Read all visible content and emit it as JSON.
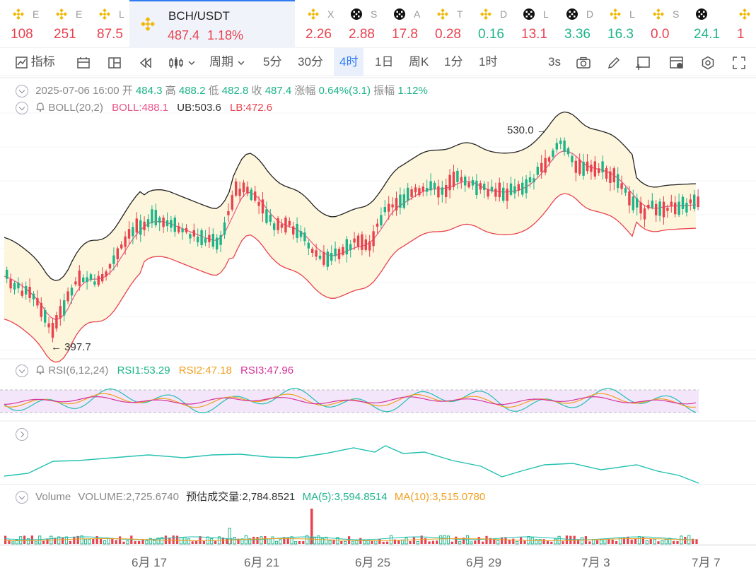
{
  "tickers": [
    {
      "name": "E",
      "price": "108",
      "dir": "dn",
      "icon": "binance-coin-icon"
    },
    {
      "name": "E",
      "price": "251",
      "dir": "dn",
      "icon": "binance-coin-icon"
    },
    {
      "name": "L",
      "price": "87.5",
      "dir": "dn",
      "icon": "binance-coin-icon"
    },
    {
      "name": "BCH/USDT",
      "price": "487.4",
      "change": "1.18%",
      "dir": "dn",
      "icon": "binance-coin-icon",
      "active": true
    },
    {
      "name": "X",
      "price": "2.26",
      "dir": "dn",
      "icon": "binance-coin-icon"
    },
    {
      "name": "S",
      "price": "2.88",
      "dir": "dn",
      "icon": "okx-icon"
    },
    {
      "name": "A",
      "price": "17.8",
      "dir": "dn",
      "icon": "okx-icon"
    },
    {
      "name": "T",
      "price": "0.28",
      "dir": "dn",
      "icon": "binance-coin-icon"
    },
    {
      "name": "D",
      "price": "0.16",
      "dir": "up",
      "icon": "binance-coin-icon"
    },
    {
      "name": "L",
      "price": "13.1",
      "dir": "dn",
      "icon": "okx-icon"
    },
    {
      "name": "D",
      "price": "3.36",
      "dir": "up",
      "icon": "okx-icon"
    },
    {
      "name": "L",
      "price": "16.3",
      "dir": "up",
      "icon": "binance-coin-icon"
    },
    {
      "name": "S",
      "price": "0.0",
      "dir": "dn",
      "icon": "binance-coin-icon"
    },
    {
      "name": "",
      "price": "24.1",
      "dir": "up",
      "icon": "okx-icon"
    },
    {
      "name": "",
      "price": "1",
      "dir": "dn",
      "icon": "binance-coin-icon"
    }
  ],
  "toolbar": {
    "indicator_label": "指标",
    "period_label": "周期",
    "intervals": [
      "5分",
      "30分",
      "4时",
      "1日",
      "周K",
      "1分",
      "1时"
    ],
    "selected_interval": "4时",
    "refresh": "3s"
  },
  "candle_info": {
    "datetime": "2025-07-06 16:00",
    "open_label": "开",
    "open": "484.3",
    "high_label": "高",
    "high": "488.2",
    "low_label": "低",
    "low": "482.8",
    "close_label": "收",
    "close": "487.4",
    "change_label": "涨幅",
    "change": "0.64%(3.1)",
    "amplitude_label": "振幅",
    "amplitude": "1.12%"
  },
  "boll": {
    "name": "BOLL(20,2)",
    "mid": "BOLL:488.1",
    "ub": "UB:503.6",
    "lb": "LB:472.6"
  },
  "rsi": {
    "name": "RSI(6,12,24)",
    "rsi1": "RSI1:53.29",
    "rsi2": "RSI2:47.18",
    "rsi3": "RSI3:47.96"
  },
  "volume": {
    "name": "Volume",
    "vol": "VOLUME:2,725.6740",
    "est": "预估成交量:2,784.8521",
    "ma5": "MA(5):3,594.8514",
    "ma10": "MA(10):3,515.0780"
  },
  "markers": {
    "high": "530.0",
    "low": "397.7"
  },
  "x_axis": [
    "6月 17",
    "6月 21",
    "6月 25",
    "6月 29",
    "7月 3",
    "7月 7"
  ],
  "colors": {
    "up": "#1eb48a",
    "down": "#e8424f",
    "accent": "#2f7bf5",
    "boll_mid": "#e8578a",
    "boll_band": "#fdf6dc"
  }
}
